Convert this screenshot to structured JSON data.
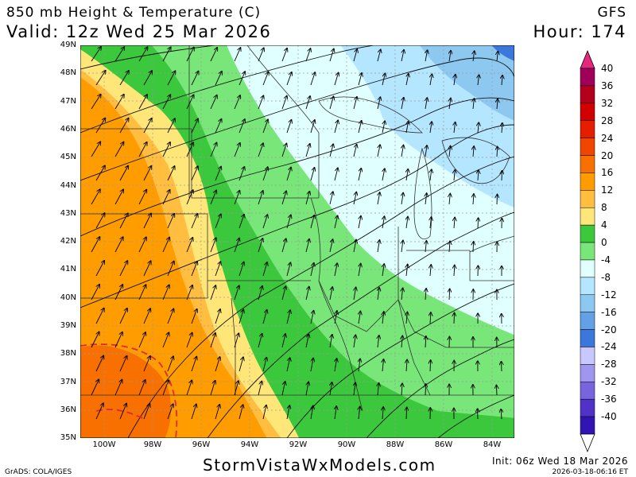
{
  "header": {
    "title": "850 mb Height & Temperature (C)",
    "valid": "Valid: 12z Wed 25 Mar 2026",
    "model": "GFS",
    "hour": "Hour: 174"
  },
  "map": {
    "lat_labels": [
      "49N",
      "48N",
      "47N",
      "46N",
      "45N",
      "44N",
      "43N",
      "42N",
      "41N",
      "40N",
      "39N",
      "38N",
      "37N",
      "36N",
      "35N"
    ],
    "lon_labels": [
      "100W",
      "98W",
      "96W",
      "94W",
      "92W",
      "90W",
      "88W",
      "86W",
      "84W"
    ]
  },
  "colorbar": {
    "labels": [
      "40",
      "36",
      "32",
      "28",
      "24",
      "20",
      "16",
      "12",
      "8",
      "4",
      "0",
      "-4",
      "-8",
      "-12",
      "-16",
      "-20",
      "-24",
      "-28",
      "-32",
      "-36",
      "-40"
    ],
    "colors": [
      "#a0005a",
      "#b4001e",
      "#d20000",
      "#e61e00",
      "#f04600",
      "#f87000",
      "#ff9c00",
      "#ffbe40",
      "#ffe678",
      "#3cc83c",
      "#78e678",
      "#e0ffff",
      "#b4e6ff",
      "#8cc8f0",
      "#64a0e6",
      "#3c78dc",
      "#c8c8ff",
      "#a096f0",
      "#7864dc",
      "#5032c8",
      "#3214b4"
    ],
    "top_cap": "#e6287c"
  },
  "footer": {
    "brand": "StormVistaWxModels.com",
    "grads": "GrADS: COLA/IGES",
    "init": "Init: 06z Wed 18 Mar 2026",
    "timestamp": "2026-03-18-06:16 ET"
  }
}
